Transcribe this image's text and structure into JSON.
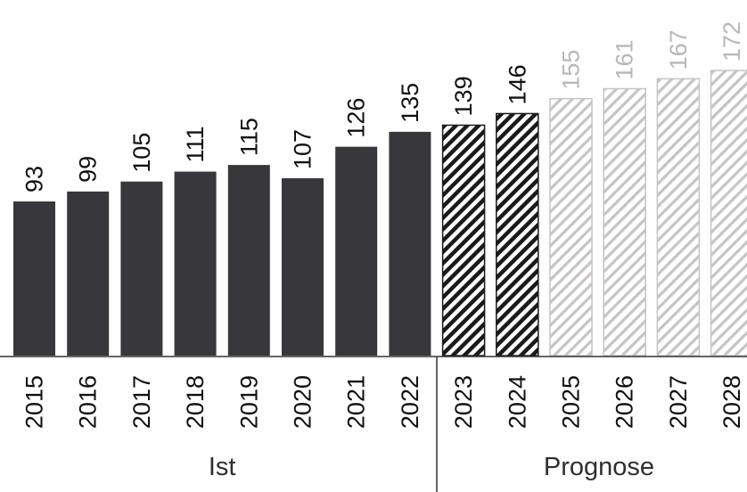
{
  "chart_data": {
    "type": "bar",
    "categories": [
      "2015",
      "2016",
      "2017",
      "2018",
      "2019",
      "2020",
      "2021",
      "2022",
      "2023",
      "2024",
      "2025",
      "2026",
      "2027",
      "2028"
    ],
    "values": [
      93,
      99,
      105,
      111,
      115,
      107,
      126,
      135,
      139,
      146,
      155,
      161,
      167,
      172
    ],
    "value_labels": [
      "93",
      "99",
      "105",
      "111",
      "115",
      "107",
      "126",
      "135",
      "139",
      "146",
      "155",
      "161",
      "167",
      "172"
    ],
    "styles": [
      "actual",
      "actual",
      "actual",
      "actual",
      "actual",
      "actual",
      "actual",
      "actual",
      "forecast-dark",
      "forecast-dark",
      "forecast-light",
      "forecast-light",
      "forecast-light",
      "forecast-light"
    ],
    "groups": [
      {
        "label": "Ist",
        "from": 0,
        "to": 7
      },
      {
        "label": "Prognose",
        "from": 8,
        "to": 13
      }
    ],
    "title": "",
    "xlabel": "",
    "ylabel": "",
    "ylim": [
      0,
      180
    ],
    "grid": false,
    "colors": {
      "actual": "#38373b",
      "hatch_dark": "#1a1a1a",
      "hatch_light": "#c7c4c4",
      "label_dark": "#111111",
      "label_light": "#b9b7b7",
      "axis": "#333333"
    }
  }
}
